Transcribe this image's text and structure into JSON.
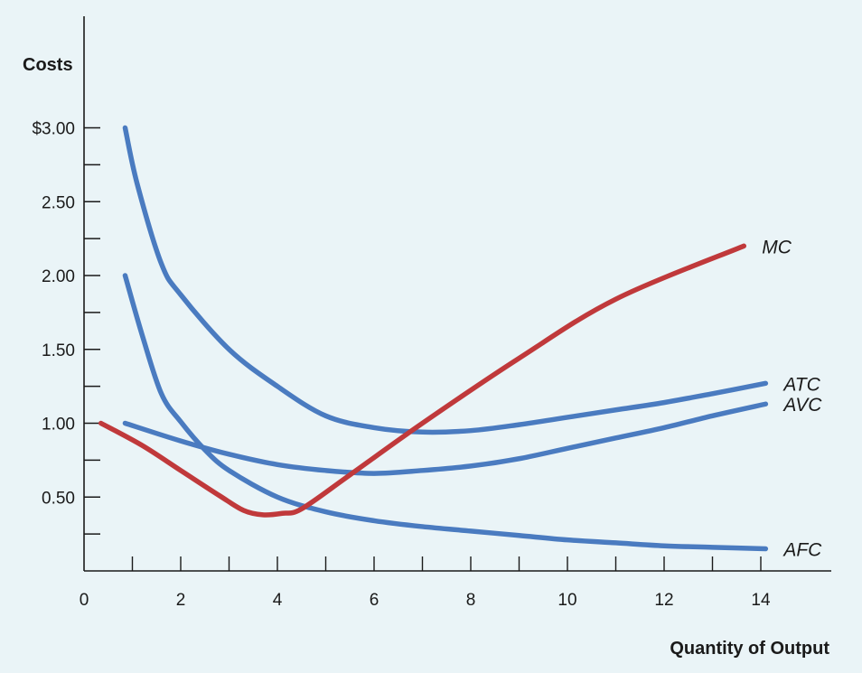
{
  "chart_data": {
    "type": "line",
    "title": "",
    "ylabel": "Costs",
    "xlabel": "Quantity of Output",
    "xlim": [
      0,
      15.5
    ],
    "ylim": [
      0,
      3.7
    ],
    "x_ticks": [
      {
        "value": 0,
        "label": "0"
      },
      {
        "value": 2,
        "label": "2"
      },
      {
        "value": 4,
        "label": "4"
      },
      {
        "value": 6,
        "label": "6"
      },
      {
        "value": 8,
        "label": "8"
      },
      {
        "value": 10,
        "label": "10"
      },
      {
        "value": 12,
        "label": "12"
      },
      {
        "value": 14,
        "label": "14"
      }
    ],
    "x_minor_ticks": [
      1,
      3,
      5,
      7,
      9,
      11,
      13
    ],
    "y_ticks": [
      {
        "value": 0.5,
        "label": "0.50"
      },
      {
        "value": 1.0,
        "label": "1.00"
      },
      {
        "value": 1.5,
        "label": "1.50"
      },
      {
        "value": 2.0,
        "label": "2.00"
      },
      {
        "value": 2.5,
        "label": "2.50"
      },
      {
        "value": 3.0,
        "label": "$3.00"
      }
    ],
    "y_minor_ticks": [
      0.25,
      0.75,
      1.25,
      1.75,
      2.25,
      2.75
    ],
    "grid": false,
    "legend": "none",
    "series": [
      {
        "name": "MC",
        "color": "#c0393b",
        "points": [
          [
            0.35,
            1.0
          ],
          [
            1.2,
            0.85
          ],
          [
            2.0,
            0.68
          ],
          [
            2.8,
            0.51
          ],
          [
            3.3,
            0.41
          ],
          [
            3.7,
            0.38
          ],
          [
            4.1,
            0.39
          ],
          [
            4.5,
            0.42
          ],
          [
            5.5,
            0.65
          ],
          [
            7.0,
            1.0
          ],
          [
            9.0,
            1.44
          ],
          [
            11.0,
            1.84
          ],
          [
            13.65,
            2.2
          ]
        ]
      },
      {
        "name": "ATC",
        "color": "#4a7bc0",
        "points": [
          [
            0.85,
            3.0
          ],
          [
            1.1,
            2.62
          ],
          [
            1.6,
            2.08
          ],
          [
            2.0,
            1.87
          ],
          [
            3.0,
            1.5
          ],
          [
            4.0,
            1.25
          ],
          [
            5.0,
            1.05
          ],
          [
            6.0,
            0.97
          ],
          [
            7.0,
            0.94
          ],
          [
            8.0,
            0.95
          ],
          [
            9.0,
            0.99
          ],
          [
            10.0,
            1.04
          ],
          [
            11.0,
            1.09
          ],
          [
            12.0,
            1.14
          ],
          [
            13.0,
            1.2
          ],
          [
            14.1,
            1.27
          ]
        ]
      },
      {
        "name": "AVC",
        "color": "#4a7bc0",
        "points": [
          [
            0.85,
            1.0
          ],
          [
            2.0,
            0.88
          ],
          [
            3.0,
            0.79
          ],
          [
            4.0,
            0.72
          ],
          [
            5.0,
            0.68
          ],
          [
            6.0,
            0.66
          ],
          [
            7.0,
            0.68
          ],
          [
            8.0,
            0.71
          ],
          [
            9.0,
            0.76
          ],
          [
            10.0,
            0.83
          ],
          [
            11.0,
            0.9
          ],
          [
            12.0,
            0.97
          ],
          [
            13.0,
            1.05
          ],
          [
            14.1,
            1.13
          ]
        ]
      },
      {
        "name": "AFC",
        "color": "#4a7bc0",
        "points": [
          [
            0.85,
            2.0
          ],
          [
            1.2,
            1.6
          ],
          [
            1.6,
            1.2
          ],
          [
            2.0,
            1.01
          ],
          [
            2.5,
            0.82
          ],
          [
            3.0,
            0.68
          ],
          [
            4.0,
            0.5
          ],
          [
            5.0,
            0.4
          ],
          [
            6.0,
            0.34
          ],
          [
            7.0,
            0.3
          ],
          [
            8.0,
            0.27
          ],
          [
            9.0,
            0.24
          ],
          [
            10.0,
            0.21
          ],
          [
            11.0,
            0.19
          ],
          [
            12.0,
            0.17
          ],
          [
            13.0,
            0.16
          ],
          [
            14.1,
            0.15
          ]
        ]
      }
    ]
  }
}
